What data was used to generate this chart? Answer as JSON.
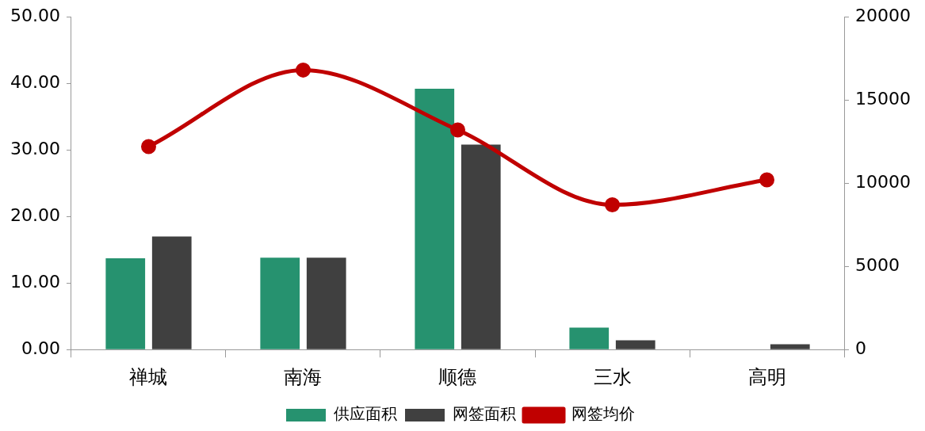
{
  "chart_data": {
    "type": "bar",
    "categories": [
      "禅城",
      "南海",
      "顺德",
      "三水",
      "高明"
    ],
    "series": [
      {
        "name": "供应面积",
        "color": "#26926f",
        "values": [
          13.7,
          13.8,
          39.2,
          3.3,
          0
        ]
      },
      {
        "name": "网签面积",
        "color": "#404040",
        "values": [
          17.0,
          13.8,
          30.8,
          1.4,
          0.8
        ]
      },
      {
        "name": "网签均价",
        "type": "line",
        "axis": "y2",
        "color": "#c00000",
        "marker": "circle",
        "values": [
          12200,
          16800,
          13200,
          8700,
          10200
        ]
      }
    ],
    "ylim": [
      0,
      50
    ],
    "yticks": [
      {
        "value": 0,
        "label": "0.00"
      },
      {
        "value": 10,
        "label": "10.00"
      },
      {
        "value": 20,
        "label": "20.00"
      },
      {
        "value": 30,
        "label": "30.00"
      },
      {
        "value": 40,
        "label": "40.00"
      },
      {
        "value": 50,
        "label": "50.00"
      }
    ],
    "y2lim": [
      0,
      20000
    ],
    "y2ticks": [
      0,
      5000,
      10000,
      15000,
      20000
    ],
    "grid": false,
    "legend": "bottom"
  }
}
